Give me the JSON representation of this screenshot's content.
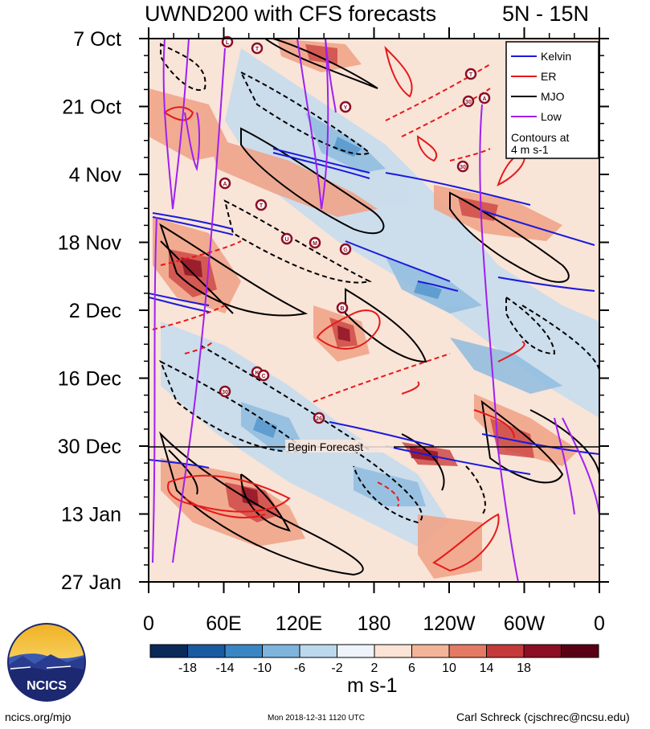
{
  "title": {
    "left": "UWND200 with CFS forecasts",
    "right": "5N - 15N"
  },
  "chart_data": {
    "type": "heatmap",
    "x_ticks": [
      "0",
      "60E",
      "120E",
      "180",
      "120W",
      "60W",
      "0"
    ],
    "y_ticks": [
      "7 Oct",
      "21 Oct",
      "4 Nov",
      "18 Nov",
      "2 Dec",
      "16 Dec",
      "30 Dec",
      "13 Jan",
      "27 Jan"
    ],
    "forecast_label": "Begin Forecast",
    "forecast_start": "30 Dec",
    "legend": {
      "entries": [
        {
          "name": "Kelvin",
          "color": "#1a1adc"
        },
        {
          "name": "ER",
          "color": "#e61919"
        },
        {
          "name": "MJO",
          "color": "#000000"
        },
        {
          "name": "Low",
          "color": "#a020f0"
        }
      ],
      "note_line1": "Contours at",
      "note_line2": "4 m s-1",
      "position": "top-right"
    },
    "colorbar": {
      "labels": [
        "-18",
        "-14",
        "-10",
        "-6",
        "-2",
        "2",
        "6",
        "10",
        "14",
        "18"
      ],
      "units": "m s-1",
      "colors": [
        "#0a2a5a",
        "#1a5aa0",
        "#3a86c4",
        "#7fb4dc",
        "#bcd8ec",
        "#eef4fa",
        "#fbe3d6",
        "#f4b49a",
        "#e47a64",
        "#c43a3a",
        "#8c0f24",
        "#5a0014"
      ]
    },
    "storm_markers": [
      "L",
      "T",
      "T",
      "Y",
      "30",
      "A",
      "A",
      "T",
      "U",
      "M",
      "G",
      "B",
      "K",
      "C",
      "30",
      "26",
      "30"
    ]
  },
  "logo": {
    "text": "NCICS"
  },
  "footer": {
    "left": "ncics.org/mjo",
    "mid": "Mon 2018-12-31 1120 UTC",
    "right": "Carl Schreck (cjschrec@ncsu.edu)"
  }
}
